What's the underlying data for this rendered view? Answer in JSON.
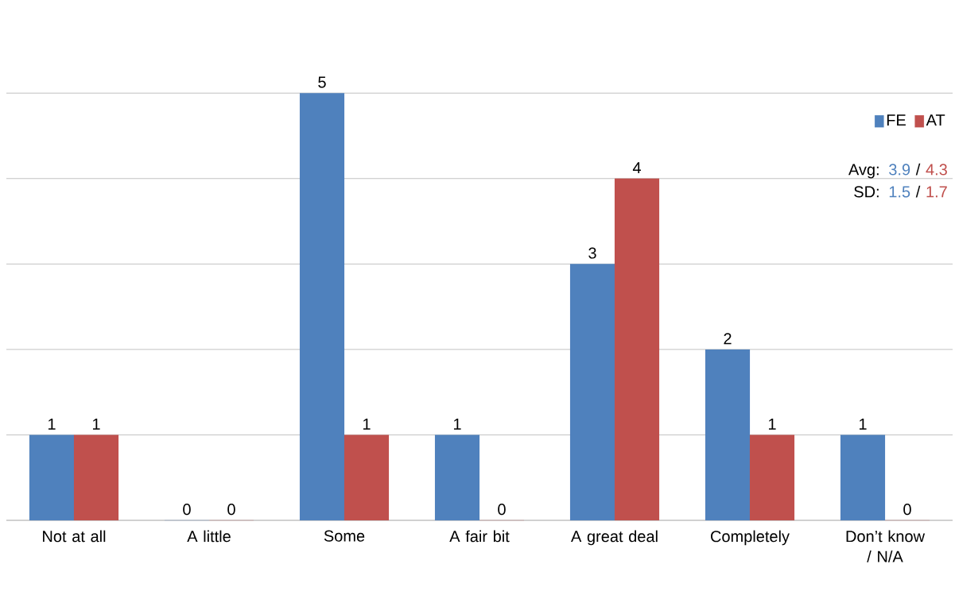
{
  "chart_data": {
    "type": "bar",
    "categories": [
      "Not at all",
      "A little",
      "Some",
      "A fair bit",
      "A great deal",
      "Completely",
      "Don’t know / N/A"
    ],
    "series": [
      {
        "name": "FE",
        "color": "#4f81bd",
        "values": [
          1,
          0,
          5,
          1,
          3,
          2,
          1
        ]
      },
      {
        "name": "AT",
        "color": "#c0504d",
        "values": [
          1,
          0,
          1,
          0,
          4,
          1,
          0
        ]
      }
    ],
    "tick_labels": "x",
    "grid": "y",
    "legend": "top right",
    "data_labels": true,
    "annotations": [
      "Avg:",
      "3.9",
      "/",
      "4.3",
      "SD:",
      "1.5",
      "/",
      "1.7"
    ]
  }
}
